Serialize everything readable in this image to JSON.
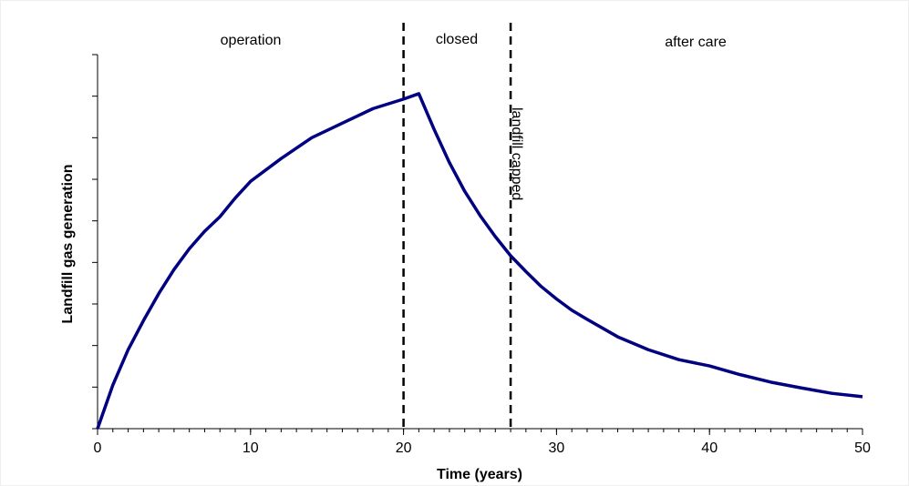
{
  "chart_data": {
    "type": "line",
    "x_label": "Time (years)",
    "y_label": "Landfill gas generation",
    "annotations": [
      "operation",
      "closed",
      "after care",
      "landfill capped"
    ],
    "vlines": [
      20,
      27
    ],
    "series": [
      {
        "color": "#000080",
        "x": [
          0,
          1,
          2,
          3,
          4,
          5,
          6,
          7,
          8,
          9,
          10,
          12,
          14,
          16,
          18,
          20,
          21,
          22,
          23,
          24,
          25,
          26,
          27,
          28,
          29,
          30,
          31,
          32,
          34,
          36,
          38,
          40,
          42,
          44,
          46,
          48,
          50
        ],
        "values": [
          0,
          1.05,
          1.9,
          2.6,
          3.25,
          3.83,
          4.33,
          4.75,
          5.1,
          5.55,
          5.95,
          6.5,
          7.0,
          7.35,
          7.7,
          7.93,
          8.06,
          7.2,
          6.4,
          5.71,
          5.13,
          4.62,
          4.16,
          3.78,
          3.42,
          3.12,
          2.85,
          2.63,
          2.21,
          1.9,
          1.66,
          1.51,
          1.3,
          1.12,
          0.98,
          0.85,
          0.77
        ]
      }
    ],
    "xlim": [
      0,
      50
    ],
    "xticks": [
      0,
      10,
      20,
      30,
      40,
      50
    ],
    "x_minor_step": 1,
    "ylim": [
      0,
      9
    ],
    "yticks": [
      0,
      1,
      2,
      3,
      4,
      5,
      6,
      7,
      8,
      9
    ],
    "ytick_labels": false
  }
}
